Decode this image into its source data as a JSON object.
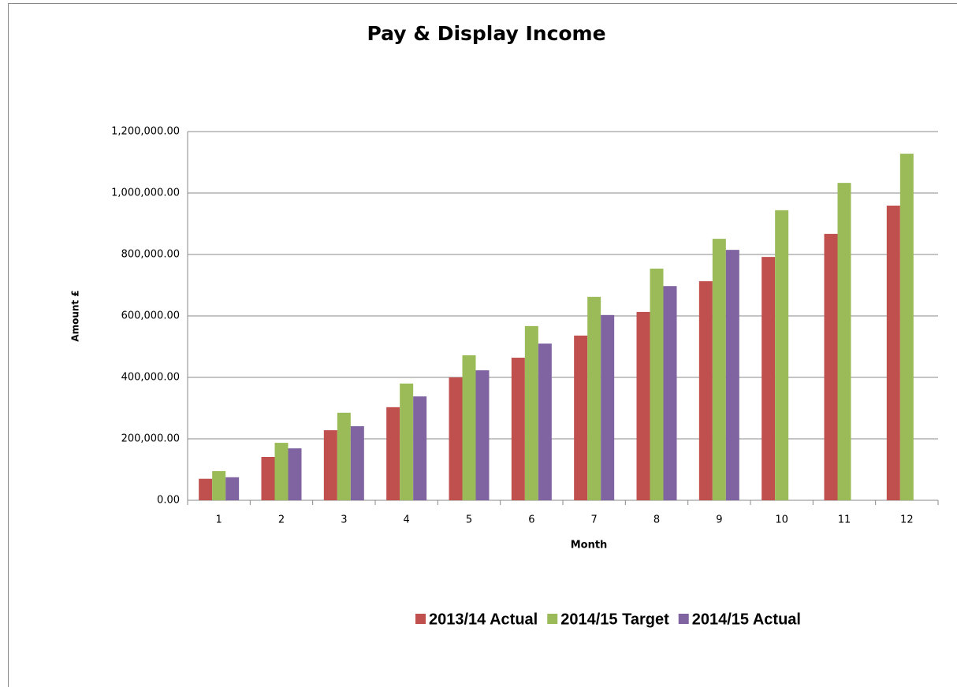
{
  "chart_data": {
    "type": "bar",
    "title": "Pay & Display Income",
    "x_label": "Month",
    "y_label": "Amount £",
    "categories": [
      "1",
      "2",
      "3",
      "4",
      "5",
      "6",
      "7",
      "8",
      "9",
      "10",
      "11",
      "12"
    ],
    "series": [
      {
        "name": "2013/14 Actual",
        "color": "#c0504d",
        "values": [
          70000,
          141000,
          228000,
          303000,
          400000,
          464000,
          536000,
          613000,
          713000,
          792000,
          867000,
          959000
        ]
      },
      {
        "name": "2014/15 Target",
        "color": "#9bbb59",
        "values": [
          95000,
          187000,
          285000,
          380000,
          472000,
          567000,
          662000,
          754000,
          851000,
          944000,
          1033000,
          1128000
        ]
      },
      {
        "name": "2014/15 Actual",
        "color": "#8064a2",
        "values": [
          75000,
          169000,
          241000,
          338000,
          423000,
          510000,
          603000,
          697000,
          815000,
          null,
          null,
          null
        ]
      }
    ],
    "ylim": [
      0,
      1200000
    ],
    "yticks": [
      {
        "value": 0,
        "label": "0.00"
      },
      {
        "value": 200000,
        "label": "200,000.00"
      },
      {
        "value": 400000,
        "label": "400,000.00"
      },
      {
        "value": 600000,
        "label": "600,000.00"
      },
      {
        "value": 800000,
        "label": "800,000.00"
      },
      {
        "value": 1000000,
        "label": "1,000,000.00"
      },
      {
        "value": 1200000,
        "label": "1,200,000.00"
      }
    ],
    "grid": true,
    "legend": "bottom"
  }
}
